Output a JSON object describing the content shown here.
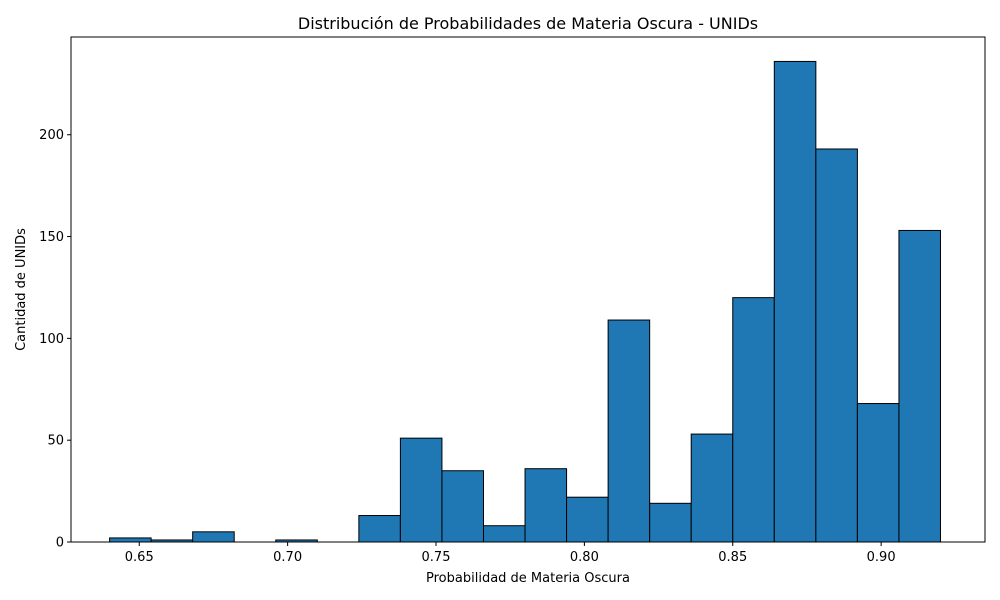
{
  "chart_data": {
    "type": "bar",
    "title": "Distribución de Probabilidades de Materia Oscura - UNIDs",
    "xlabel": "Probabilidad de Materia Oscura",
    "ylabel": "Cantidad de UNIDs",
    "xlim": [
      0.627,
      0.935
    ],
    "ylim": [
      0,
      248
    ],
    "grid": false,
    "bar_color": "#1f77b4",
    "edge_color": "#000000",
    "x_ticks": [
      {
        "value": 0.65,
        "label": "0.65"
      },
      {
        "value": 0.7,
        "label": "0.70"
      },
      {
        "value": 0.75,
        "label": "0.75"
      },
      {
        "value": 0.8,
        "label": "0.80"
      },
      {
        "value": 0.85,
        "label": "0.85"
      },
      {
        "value": 0.9,
        "label": "0.90"
      }
    ],
    "y_ticks": [
      {
        "value": 0,
        "label": "0"
      },
      {
        "value": 50,
        "label": "50"
      },
      {
        "value": 100,
        "label": "100"
      },
      {
        "value": 150,
        "label": "150"
      },
      {
        "value": 200,
        "label": "200"
      }
    ],
    "bins": [
      {
        "start": 0.64,
        "end": 0.654,
        "count": 2
      },
      {
        "start": 0.654,
        "end": 0.668,
        "count": 1
      },
      {
        "start": 0.668,
        "end": 0.682,
        "count": 5
      },
      {
        "start": 0.682,
        "end": 0.696,
        "count": 0
      },
      {
        "start": 0.696,
        "end": 0.71,
        "count": 1
      },
      {
        "start": 0.71,
        "end": 0.724,
        "count": 0
      },
      {
        "start": 0.724,
        "end": 0.738,
        "count": 13
      },
      {
        "start": 0.738,
        "end": 0.752,
        "count": 51
      },
      {
        "start": 0.752,
        "end": 0.766,
        "count": 35
      },
      {
        "start": 0.766,
        "end": 0.78,
        "count": 8
      },
      {
        "start": 0.78,
        "end": 0.794,
        "count": 36
      },
      {
        "start": 0.794,
        "end": 0.808,
        "count": 22
      },
      {
        "start": 0.808,
        "end": 0.822,
        "count": 109
      },
      {
        "start": 0.822,
        "end": 0.836,
        "count": 19
      },
      {
        "start": 0.836,
        "end": 0.85,
        "count": 53
      },
      {
        "start": 0.85,
        "end": 0.864,
        "count": 120
      },
      {
        "start": 0.864,
        "end": 0.878,
        "count": 236
      },
      {
        "start": 0.878,
        "end": 0.892,
        "count": 193
      },
      {
        "start": 0.892,
        "end": 0.906,
        "count": 68
      },
      {
        "start": 0.906,
        "end": 0.92,
        "count": 153
      }
    ]
  }
}
